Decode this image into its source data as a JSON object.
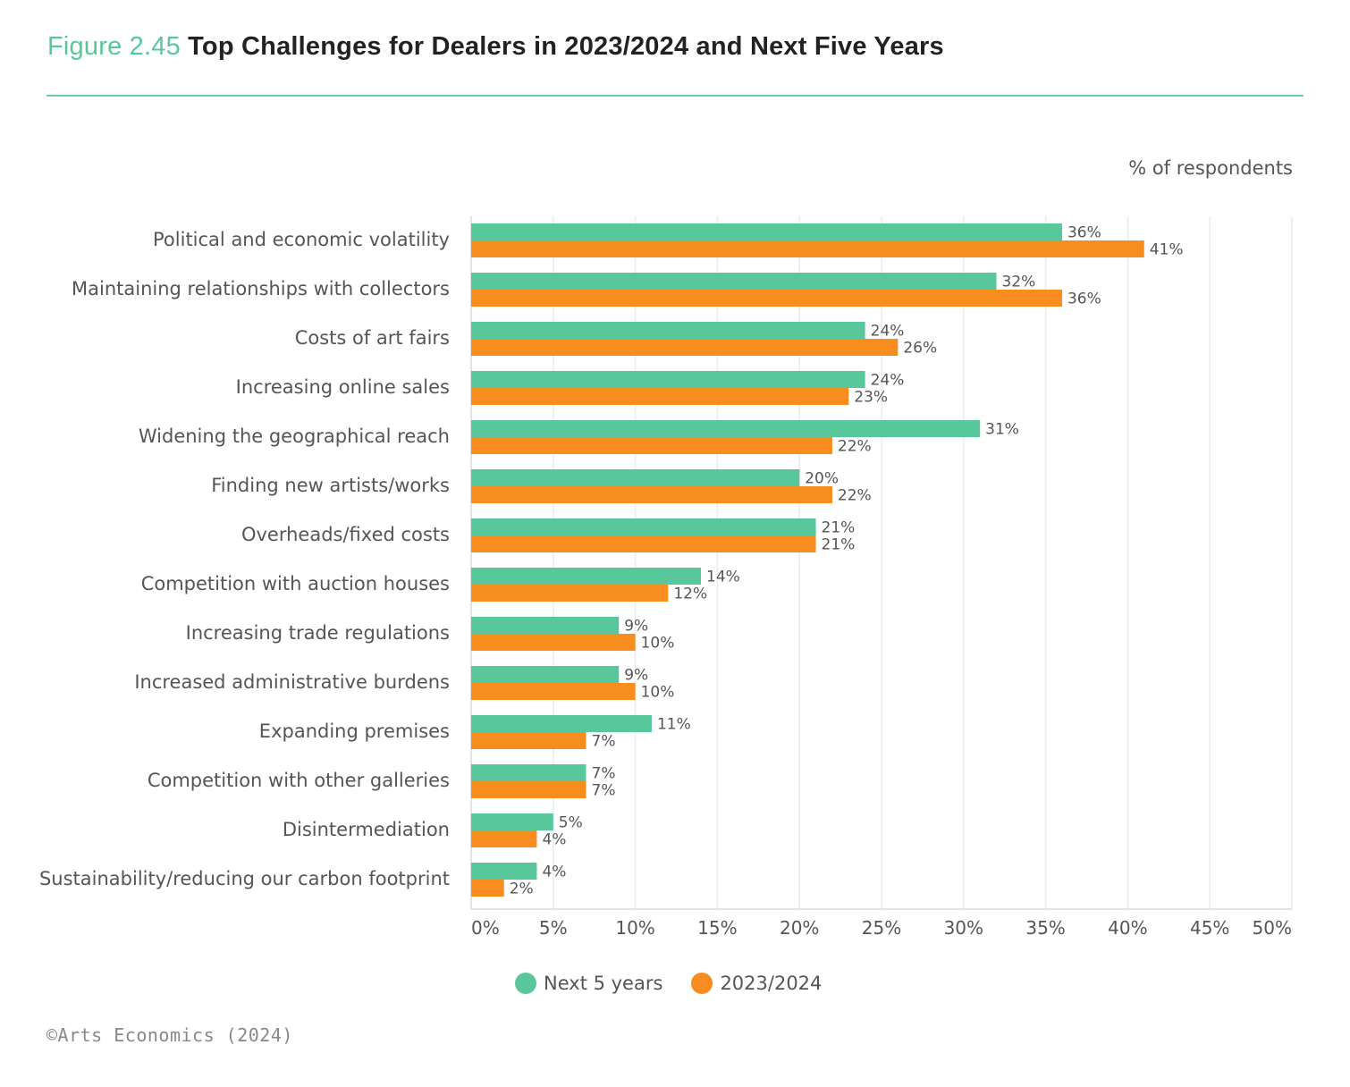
{
  "figure": {
    "number": "Figure 2.45",
    "title": "Top Challenges for Dealers in 2023/2024 and Next Five Years"
  },
  "credit": "©Arts Economics (2024)",
  "colors": {
    "next5": "#58c79b",
    "current": "#f78c1f",
    "accent": "#58c79b"
  },
  "chart_data": {
    "type": "bar",
    "orientation": "horizontal",
    "unit_label": "% of respondents",
    "xlim": [
      0,
      50
    ],
    "xticks": [
      0,
      5,
      10,
      15,
      20,
      25,
      30,
      35,
      40,
      45,
      50
    ],
    "xtick_labels": [
      "0%",
      "5%",
      "10%",
      "15%",
      "20%",
      "25%",
      "30%",
      "35%",
      "40%",
      "45%",
      "50%"
    ],
    "grid": true,
    "legend_position": "bottom-center",
    "categories": [
      "Political and economic volatility",
      "Maintaining relationships with collectors",
      "Costs of art fairs",
      "Increasing online sales",
      "Widening the geographical reach",
      "Finding new artists/works",
      "Overheads/fixed costs",
      "Competition with auction houses",
      "Increasing trade regulations",
      "Increased administrative burdens",
      "Expanding premises",
      "Competition with other galleries",
      "Disintermediation",
      "Sustainability/reducing our carbon footprint"
    ],
    "series": [
      {
        "name": "Next 5 years",
        "color": "#58c79b",
        "values": [
          36,
          32,
          24,
          24,
          31,
          20,
          21,
          14,
          9,
          9,
          11,
          7,
          5,
          4
        ]
      },
      {
        "name": "2023/2024",
        "color": "#f78c1f",
        "values": [
          41,
          36,
          26,
          23,
          22,
          22,
          21,
          12,
          10,
          10,
          7,
          7,
          4,
          2
        ]
      }
    ]
  }
}
